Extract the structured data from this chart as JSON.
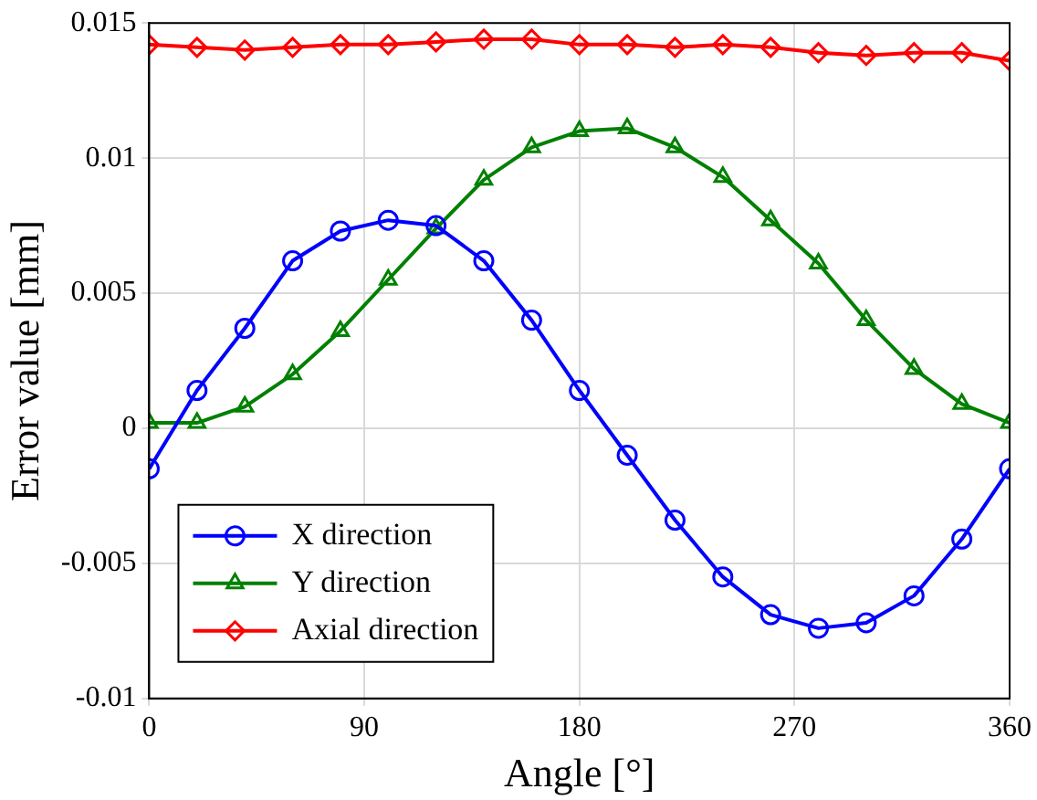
{
  "chart_data": {
    "type": "line",
    "xlabel": "Angle [°]",
    "ylabel": "Error value [mm]",
    "x": [
      0,
      20,
      40,
      60,
      80,
      100,
      120,
      140,
      160,
      180,
      200,
      220,
      240,
      260,
      280,
      300,
      320,
      340,
      360
    ],
    "xlim": [
      0,
      360
    ],
    "xticks": [
      0,
      90,
      180,
      270,
      360
    ],
    "ylim": [
      -0.01,
      0.015
    ],
    "yticks": [
      -0.01,
      -0.005,
      0,
      0.005,
      0.01,
      0.015
    ],
    "grid": true,
    "legend": "bottom left",
    "line_style": "solid",
    "series": [
      {
        "name": "X direction",
        "color": "#0000ff",
        "marker": "circle",
        "values": [
          -0.0015,
          0.0014,
          0.0037,
          0.0062,
          0.0073,
          0.0077,
          0.0075,
          0.0062,
          0.004,
          0.0014,
          -0.001,
          -0.0034,
          -0.0055,
          -0.0069,
          -0.0074,
          -0.0072,
          -0.0062,
          -0.0041,
          -0.0015
        ]
      },
      {
        "name": "Y direction",
        "color": "#008000",
        "marker": "triangle",
        "values": [
          0.0002,
          0.0002,
          0.0008,
          0.002,
          0.0036,
          0.0055,
          0.0074,
          0.0092,
          0.0104,
          0.011,
          0.0111,
          0.0104,
          0.0093,
          0.0077,
          0.0061,
          0.004,
          0.0022,
          0.0009,
          0.0002
        ]
      },
      {
        "name": "Axial direction",
        "color": "#ff0000",
        "marker": "diamond",
        "values": [
          0.0142,
          0.0141,
          0.014,
          0.0141,
          0.0142,
          0.0142,
          0.0143,
          0.0144,
          0.0144,
          0.0142,
          0.0142,
          0.0141,
          0.0142,
          0.0141,
          0.0139,
          0.0138,
          0.0139,
          0.0139,
          0.0136
        ]
      }
    ]
  }
}
